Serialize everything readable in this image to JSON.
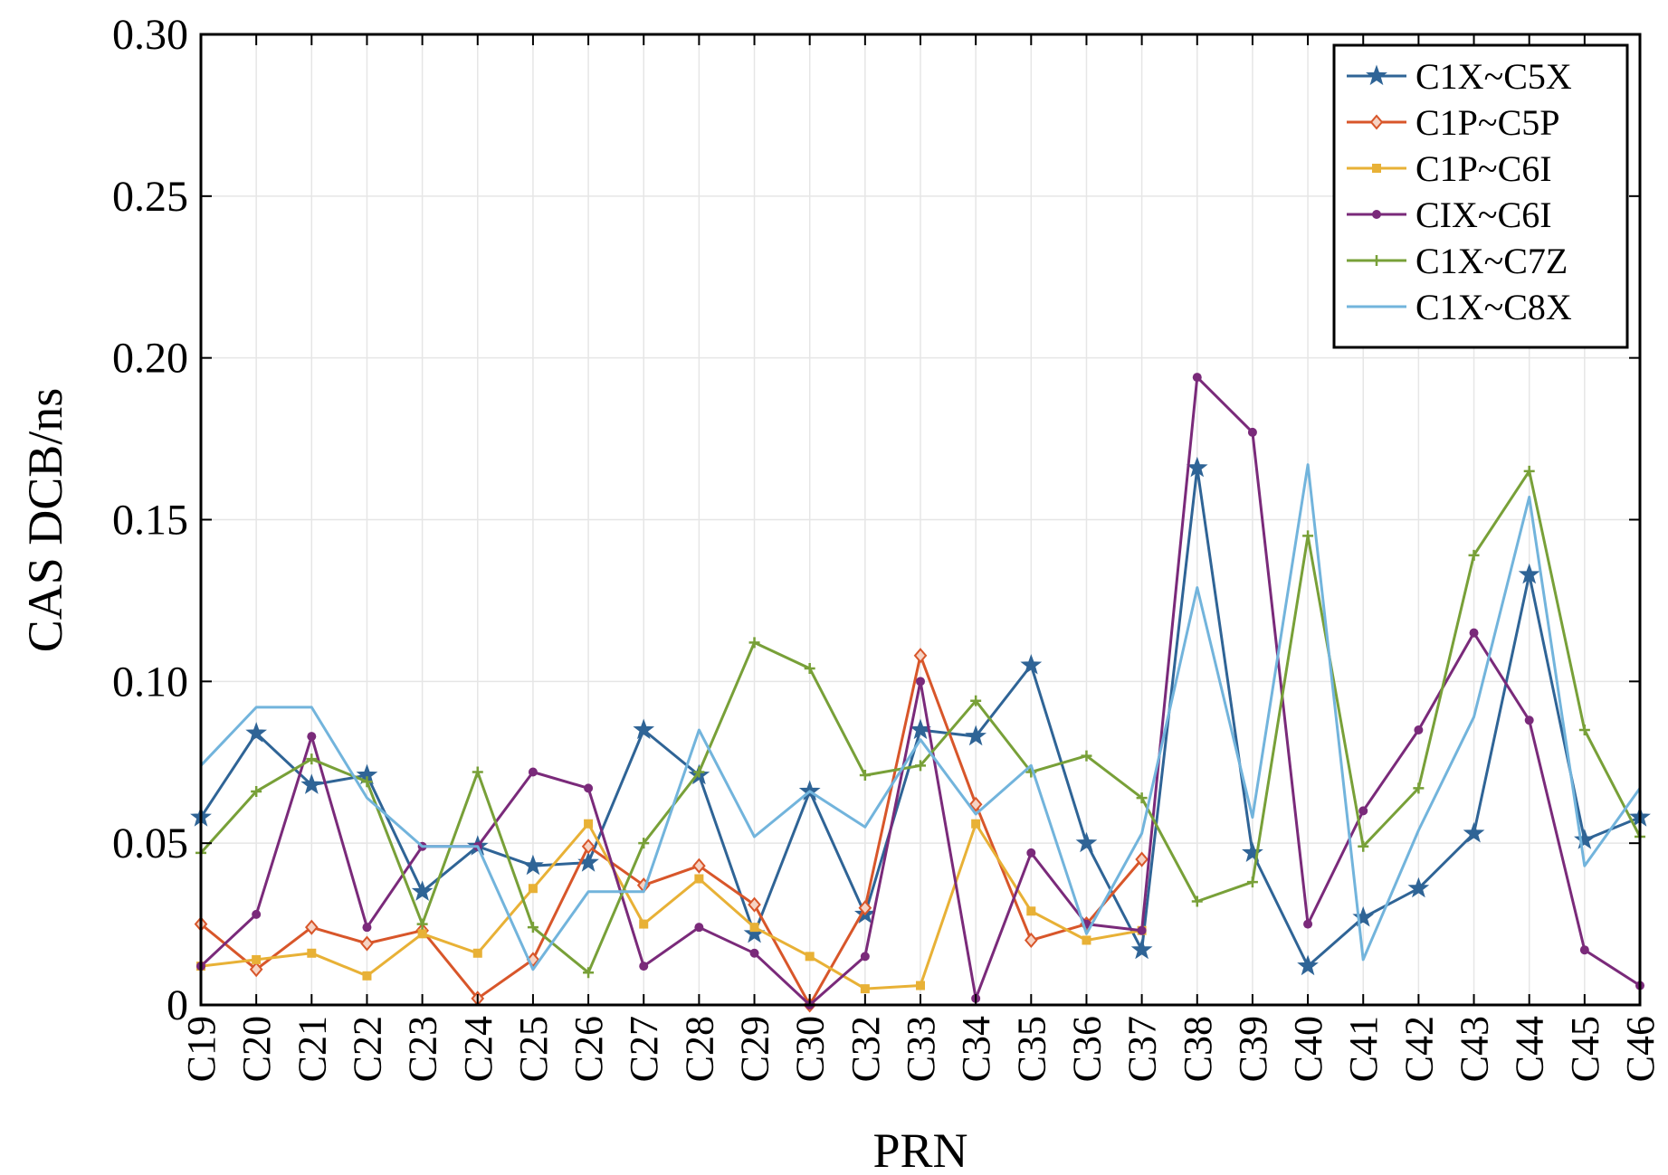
{
  "chart_data": {
    "type": "line",
    "title": "",
    "xlabel": "PRN",
    "ylabel": "CAS DCB/ns",
    "ylim": [
      0,
      0.3
    ],
    "yticks": [
      "0",
      "0.05",
      "0.10",
      "0.15",
      "0.20",
      "0.25",
      "0.30"
    ],
    "grid": true,
    "legend_position": "top-right",
    "categories": [
      "C19",
      "C20",
      "C21",
      "C22",
      "C23",
      "C24",
      "C25",
      "C26",
      "C27",
      "C28",
      "C29",
      "C30",
      "C32",
      "C33",
      "C34",
      "C35",
      "C36",
      "C37",
      "C38",
      "C39",
      "C40",
      "C41",
      "C42",
      "C43",
      "C44",
      "C45",
      "C46"
    ],
    "series": [
      {
        "name": "C1X~C5X",
        "color": "#2f6496",
        "marker": "star",
        "values": [
          0.058,
          0.084,
          0.068,
          0.071,
          0.035,
          0.049,
          0.043,
          0.044,
          0.085,
          0.071,
          0.022,
          0.066,
          0.028,
          0.085,
          0.083,
          0.105,
          0.05,
          0.017,
          0.166,
          0.047,
          0.012,
          0.027,
          0.036,
          0.053,
          0.133,
          0.051,
          0.058
        ]
      },
      {
        "name": "C1P~C5P",
        "color": "#d8562a",
        "marker": "diamond",
        "values": [
          0.025,
          0.011,
          0.024,
          0.019,
          0.023,
          0.002,
          0.014,
          0.049,
          0.037,
          0.043,
          0.031,
          0.0,
          0.03,
          0.108,
          0.062,
          0.02,
          0.025,
          0.045,
          null,
          null,
          null,
          null,
          null,
          null,
          null,
          null,
          null
        ]
      },
      {
        "name": "C1P~C6I",
        "color": "#e8b136",
        "marker": "square",
        "values": [
          0.012,
          0.014,
          0.016,
          0.009,
          0.022,
          0.016,
          0.036,
          0.056,
          0.025,
          0.039,
          0.024,
          0.015,
          0.005,
          0.006,
          0.056,
          0.029,
          0.02,
          0.023,
          null,
          null,
          null,
          null,
          null,
          null,
          null,
          null,
          null
        ]
      },
      {
        "name": "CIX~C6I",
        "color": "#7a2a7a",
        "marker": "circle",
        "values": [
          0.012,
          0.028,
          0.083,
          0.024,
          0.049,
          0.049,
          0.072,
          0.067,
          0.012,
          0.024,
          0.016,
          0.0,
          0.015,
          0.1,
          0.002,
          0.047,
          0.025,
          0.023,
          0.194,
          0.177,
          0.025,
          0.06,
          0.085,
          0.115,
          0.088,
          0.017,
          0.006
        ]
      },
      {
        "name": "C1X~C7Z",
        "color": "#78a038",
        "marker": "plus",
        "values": [
          0.047,
          0.066,
          0.076,
          0.069,
          0.025,
          0.072,
          0.024,
          0.01,
          0.05,
          0.072,
          0.112,
          0.104,
          0.071,
          0.074,
          0.094,
          0.072,
          0.077,
          0.064,
          0.032,
          0.038,
          0.145,
          0.049,
          0.067,
          0.139,
          0.165,
          0.085,
          0.052
        ]
      },
      {
        "name": "C1X~C8X",
        "color": "#72b4dc",
        "marker": "none",
        "values": [
          0.074,
          0.092,
          0.092,
          0.064,
          0.049,
          0.049,
          0.011,
          0.035,
          0.035,
          0.085,
          0.052,
          0.066,
          0.055,
          0.082,
          0.059,
          0.074,
          0.022,
          0.053,
          0.129,
          0.058,
          0.167,
          0.014,
          0.054,
          0.089,
          0.157,
          0.043,
          0.067
        ]
      }
    ]
  }
}
